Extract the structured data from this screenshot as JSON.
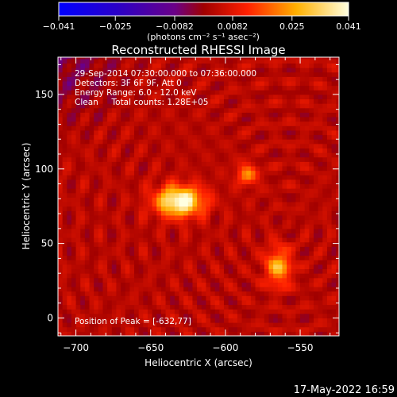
{
  "chart_data": {
    "type": "heatmap",
    "title": "Reconstructed RHESSI Image",
    "xlabel": "Heliocentric X (arcsec)",
    "ylabel": "Heliocentric Y (arcsec)",
    "xlim": [
      -712,
      -524
    ],
    "ylim": [
      -12,
      175
    ],
    "x_ticks": [
      -700,
      -650,
      -600,
      -550
    ],
    "y_ticks": [
      0,
      50,
      100,
      150
    ],
    "colorbar": {
      "ticks": [
        "-0.041",
        "-0.025",
        "-0.0082",
        "0.0082",
        "0.025",
        "0.041"
      ],
      "range": [
        -0.041,
        0.041
      ],
      "label": "(photons cm⁻² s⁻¹ asec⁻²)"
    },
    "annotations": [
      "29-Sep-2014 07:30:00.000 to 07:36:00.000",
      "Detectors: 3F 6F 9F, Att 0",
      "Energy Range: 6.0 - 12.0 keV",
      "Clean     Total counts: 1.28E+05"
    ],
    "peak_label": "Position of Peak = [-632,77]",
    "sources": [
      {
        "x": -632,
        "y": 77,
        "peak": 0.041,
        "sx": 11,
        "sy": 7
      },
      {
        "x": -587,
        "y": 95,
        "peak": 0.019,
        "sx": 5,
        "sy": 5
      },
      {
        "x": -566,
        "y": 33,
        "peak": 0.024,
        "sx": 6,
        "sy": 9
      }
    ],
    "background": {
      "level": 0.003,
      "negative_region": {
        "x": -712,
        "y": 175,
        "radius": 60,
        "depth": -0.008
      }
    }
  },
  "timestamp": "17-May-2022 16:59"
}
